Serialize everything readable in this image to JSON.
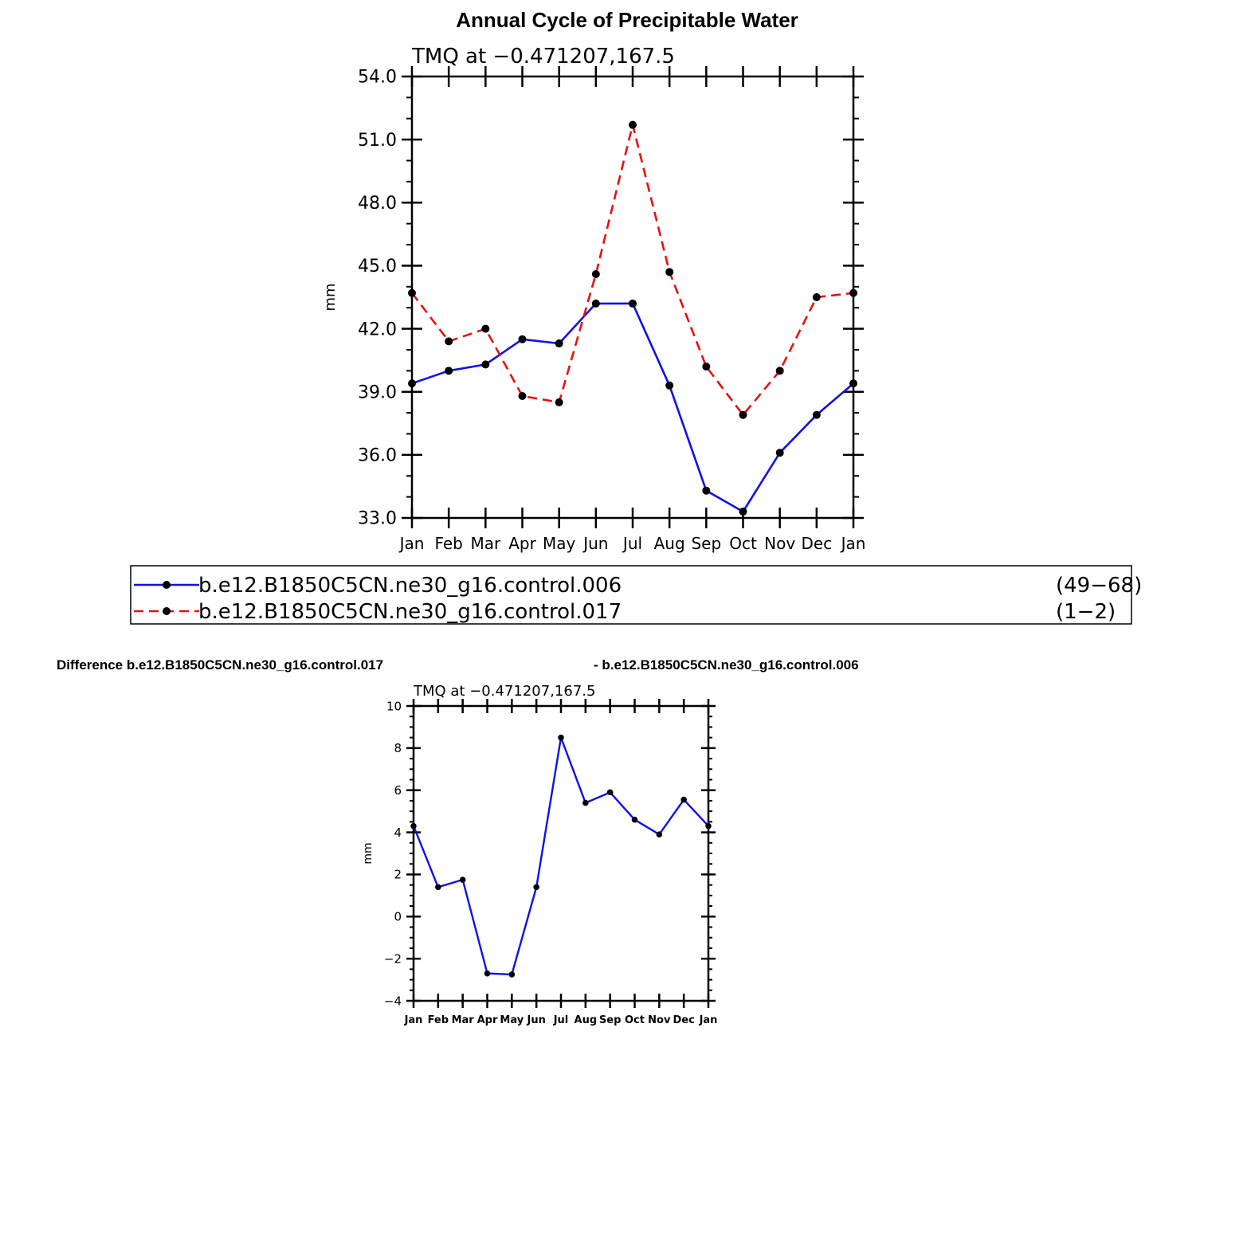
{
  "title": "Annual Cycle of Precipitable Water",
  "diff_title_left": "Difference b.e12.B1850C5CN.ne30_g16.control.017",
  "diff_title_right": "- b.e12.B1850C5CN.ne30_g16.control.006",
  "colors": {
    "series_a": "#1010e8",
    "series_b": "#e81010",
    "axis": "#000000",
    "marker": "#000000"
  },
  "legend": [
    {
      "name": "b.e12.B1850C5CN.ne30_g16.control.006",
      "range": "(49−68)",
      "color": "#1010e8",
      "style": "solid"
    },
    {
      "name": "b.e12.B1850C5CN.ne30_g16.control.017",
      "range": "(1−2)",
      "color": "#e81010",
      "style": "dashed"
    }
  ],
  "chart_data": [
    {
      "type": "line",
      "subtitle": "TMQ  at  −0.471207,167.5",
      "ylabel": "mm",
      "xlabel": "",
      "categories": [
        "Jan",
        "Feb",
        "Mar",
        "Apr",
        "May",
        "Jun",
        "Jul",
        "Aug",
        "Sep",
        "Oct",
        "Nov",
        "Dec",
        "Jan"
      ],
      "ylim": [
        33.0,
        54.0
      ],
      "yticks": [
        "33.0",
        "36.0",
        "39.0",
        "42.0",
        "45.0",
        "48.0",
        "51.0",
        "54.0"
      ],
      "series": [
        {
          "name": "b.e12.B1850C5CN.ne30_g16.control.006",
          "values": [
            39.4,
            40.0,
            40.3,
            41.5,
            41.3,
            43.2,
            43.2,
            39.3,
            34.3,
            33.3,
            36.1,
            37.9,
            39.4
          ]
        },
        {
          "name": "b.e12.B1850C5CN.ne30_g16.control.017",
          "values": [
            43.7,
            41.4,
            42.0,
            38.8,
            38.5,
            44.6,
            51.7,
            44.7,
            40.2,
            37.9,
            40.0,
            43.5,
            43.7
          ]
        }
      ]
    },
    {
      "type": "line",
      "subtitle": "TMQ  at  −0.471207,167.5",
      "ylabel": "mm",
      "xlabel": "",
      "categories": [
        "Jan",
        "Feb",
        "Mar",
        "Apr",
        "May",
        "Jun",
        "Jul",
        "Aug",
        "Sep",
        "Oct",
        "Nov",
        "Dec",
        "Jan"
      ],
      "ylim": [
        -4,
        10
      ],
      "yticks": [
        "−4",
        "−2",
        "0",
        "2",
        "4",
        "6",
        "8",
        "10"
      ],
      "series": [
        {
          "name": "difference",
          "values": [
            4.3,
            1.4,
            1.75,
            -2.7,
            -2.75,
            1.4,
            8.5,
            5.4,
            5.9,
            4.6,
            3.9,
            5.55,
            4.3
          ]
        }
      ]
    }
  ]
}
